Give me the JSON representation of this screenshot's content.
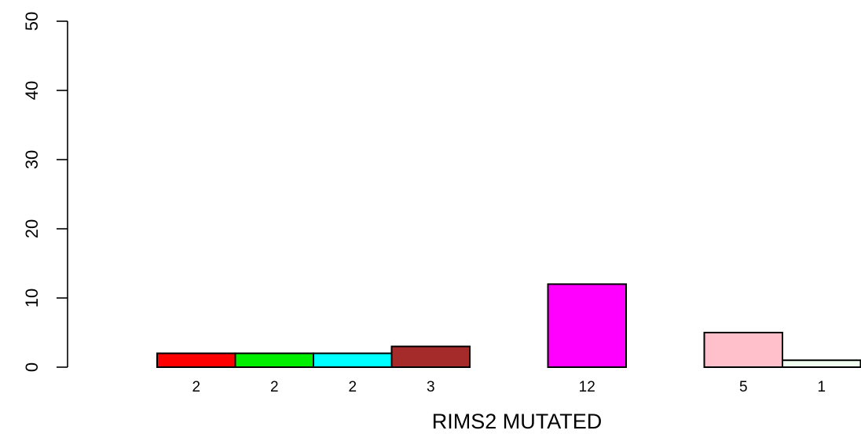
{
  "chart_data": {
    "type": "bar",
    "xlabel": "RIMS2 MUTATED",
    "ylabel": "",
    "ylim": [
      0,
      50
    ],
    "yticks": [
      0,
      10,
      20,
      30,
      40,
      50
    ],
    "grid": false,
    "legend": "none",
    "categories": [
      "2",
      "2",
      "2",
      "3",
      "",
      "12",
      "",
      "5",
      "1"
    ],
    "values": [
      2,
      2,
      2,
      3,
      0,
      12,
      0,
      5,
      1
    ],
    "bar_labels": [
      "2",
      "2",
      "2",
      "3",
      "",
      "12",
      "",
      "5",
      "1"
    ],
    "colors": [
      "#ff0000",
      "#00ee00",
      "#00ffff",
      "#a52a2a",
      "#ffffff",
      "#ff00ff",
      "#ffffff",
      "#ffc0cb",
      "#f0fff0"
    ]
  }
}
